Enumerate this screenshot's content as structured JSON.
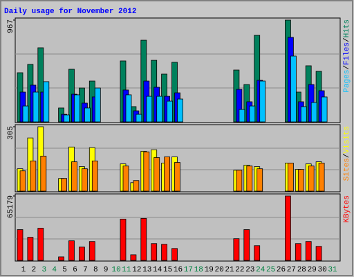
{
  "title": "Daily usage for November 2012",
  "separator": "/",
  "chart_data": [
    {
      "type": "bar",
      "ylim": [
        0,
        967
      ],
      "yticks": [
        967
      ],
      "series": [
        {
          "name": "Hits",
          "color": "#00805c",
          "values": [
            467,
            546,
            704,
            0,
            132,
            500,
            322,
            388,
            0,
            0,
            579,
            145,
            776,
            585,
            454,
            566,
            0,
            0,
            0,
            0,
            0,
            493,
            355,
            822,
            0,
            0,
            967,
            283,
            533,
            480,
            0
          ]
        },
        {
          "name": "Files",
          "color": "#0000ff",
          "values": [
            283,
            349,
            283,
            0,
            72,
            263,
            178,
            237,
            0,
            0,
            303,
            105,
            388,
            329,
            243,
            276,
            0,
            0,
            0,
            0,
            0,
            309,
            191,
            395,
            0,
            0,
            803,
            191,
            355,
            296,
            0
          ]
        },
        {
          "name": "Pages",
          "color": "#00c0ff",
          "values": [
            151,
            283,
            382,
            0,
            66,
            257,
            132,
            322,
            0,
            0,
            257,
            72,
            243,
            243,
            197,
            217,
            0,
            0,
            0,
            0,
            0,
            118,
            151,
            388,
            0,
            0,
            625,
            145,
            184,
            237,
            0
          ]
        }
      ]
    },
    {
      "type": "bar",
      "ylim": [
        0,
        305
      ],
      "yticks": [
        305
      ],
      "series": [
        {
          "name": "Visits",
          "color": "#ffff00",
          "values": [
            106,
            252,
            305,
            0,
            60,
            209,
            116,
            206,
            0,
            0,
            129,
            40,
            189,
            196,
            133,
            162,
            0,
            0,
            0,
            0,
            0,
            99,
            123,
            116,
            0,
            0,
            133,
            103,
            129,
            139,
            0
          ]
        },
        {
          "name": "Sites",
          "color": "#ff8000",
          "values": [
            96,
            143,
            166,
            0,
            60,
            139,
            106,
            143,
            0,
            0,
            119,
            50,
            186,
            159,
            162,
            136,
            0,
            0,
            0,
            0,
            0,
            99,
            119,
            106,
            0,
            0,
            133,
            103,
            119,
            133,
            0
          ]
        }
      ]
    },
    {
      "type": "bar",
      "ylim": [
        0,
        65179
      ],
      "yticks": [
        65179
      ],
      "series": [
        {
          "name": "KBytes",
          "color": "#ff0000",
          "values": [
            31174,
            23380,
            32590,
            0,
            3542,
            19837,
            13461,
            19129,
            0,
            0,
            41800,
            5668,
            42508,
            17003,
            16295,
            12044,
            0,
            0,
            0,
            0,
            0,
            21963,
            31174,
            14878,
            0,
            0,
            65179,
            17003,
            19129,
            14170,
            0
          ]
        }
      ],
      "categories": [
        "1",
        "2",
        "3",
        "4",
        "5",
        "6",
        "7",
        "8",
        "9",
        "10",
        "11",
        "12",
        "13",
        "14",
        "15",
        "16",
        "17",
        "18",
        "19",
        "20",
        "21",
        "22",
        "23",
        "24",
        "25",
        "26",
        "27",
        "28",
        "29",
        "30",
        "31"
      ],
      "label_colors": [
        "#000000",
        "#000000",
        "#008040",
        "#008040",
        "#000000",
        "#000000",
        "#000000",
        "#000000",
        "#000000",
        "#008040",
        "#008040",
        "#000000",
        "#000000",
        "#000000",
        "#000000",
        "#000000",
        "#008040",
        "#008040",
        "#000000",
        "#000000",
        "#000000",
        "#000000",
        "#000000",
        "#008040",
        "#008040",
        "#000000",
        "#000000",
        "#000000",
        "#000000",
        "#000000",
        "#008040"
      ]
    }
  ]
}
